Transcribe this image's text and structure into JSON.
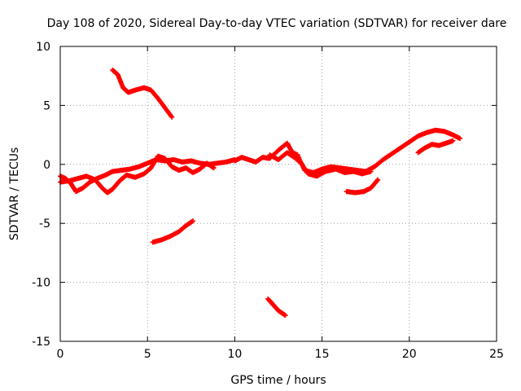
{
  "chart_data": {
    "type": "scatter",
    "title": "Day 108 of 2020, Sidereal Day-to-day VTEC variation (SDTVAR) for receiver dare",
    "xlabel": "GPS time / hours",
    "ylabel": "SDTVAR / TECUs",
    "xlim": [
      0,
      25
    ],
    "ylim": [
      -15,
      10
    ],
    "xticks": [
      0,
      5,
      10,
      15,
      20,
      25
    ],
    "yticks": [
      -15,
      -10,
      -5,
      0,
      5,
      10
    ],
    "grid": true,
    "marker": "+",
    "color": "#ff0000",
    "series": [
      {
        "name": "arc-upper-early",
        "points": [
          [
            3.0,
            8.0
          ],
          [
            3.3,
            7.6
          ],
          [
            3.6,
            6.5
          ],
          [
            3.9,
            6.1
          ],
          [
            4.3,
            6.3
          ],
          [
            4.8,
            6.5
          ],
          [
            5.2,
            6.3
          ],
          [
            5.6,
            5.6
          ],
          [
            6.0,
            4.8
          ],
          [
            6.4,
            4.0
          ]
        ]
      },
      {
        "name": "arc-lower-a",
        "points": [
          [
            5.3,
            -6.6
          ],
          [
            5.8,
            -6.4
          ],
          [
            6.3,
            -6.1
          ],
          [
            6.8,
            -5.7
          ],
          [
            7.2,
            -5.2
          ],
          [
            7.6,
            -4.8
          ]
        ]
      },
      {
        "name": "arc-lower-b",
        "points": [
          [
            11.9,
            -11.4
          ],
          [
            12.2,
            -11.9
          ],
          [
            12.5,
            -12.4
          ],
          [
            12.9,
            -12.8
          ]
        ]
      },
      {
        "name": "main-band-a",
        "points": [
          [
            0.0,
            -1.0
          ],
          [
            0.3,
            -1.2
          ],
          [
            0.6,
            -1.6
          ],
          [
            0.9,
            -2.3
          ],
          [
            1.3,
            -2.0
          ],
          [
            1.7,
            -1.5
          ],
          [
            2.1,
            -1.2
          ],
          [
            2.6,
            -0.9
          ],
          [
            3.0,
            -0.6
          ],
          [
            3.5,
            -0.5
          ],
          [
            4.0,
            -0.4
          ],
          [
            4.5,
            -0.2
          ],
          [
            5.0,
            0.1
          ],
          [
            5.5,
            0.4
          ],
          [
            6.0,
            0.3
          ],
          [
            6.5,
            0.4
          ],
          [
            7.0,
            0.2
          ],
          [
            7.5,
            0.3
          ],
          [
            8.0,
            0.1
          ],
          [
            8.5,
            0.0
          ],
          [
            9.0,
            0.1
          ],
          [
            9.5,
            0.2
          ],
          [
            10.0,
            0.4
          ]
        ]
      },
      {
        "name": "main-band-b",
        "points": [
          [
            0.0,
            -1.5
          ],
          [
            0.5,
            -1.4
          ],
          [
            1.0,
            -1.2
          ],
          [
            1.5,
            -1.0
          ],
          [
            2.0,
            -1.3
          ],
          [
            2.4,
            -2.0
          ],
          [
            2.7,
            -2.4
          ],
          [
            3.0,
            -2.1
          ],
          [
            3.4,
            -1.4
          ],
          [
            3.8,
            -0.9
          ],
          [
            4.3,
            -1.1
          ],
          [
            4.8,
            -0.8
          ],
          [
            5.2,
            -0.3
          ],
          [
            5.6,
            0.7
          ],
          [
            6.0,
            0.5
          ],
          [
            6.4,
            -0.2
          ],
          [
            6.8,
            -0.5
          ],
          [
            7.2,
            -0.3
          ],
          [
            7.6,
            -0.7
          ],
          [
            8.0,
            -0.4
          ],
          [
            8.4,
            0.1
          ],
          [
            8.8,
            -0.3
          ]
        ]
      },
      {
        "name": "main-band-c",
        "points": [
          [
            10.0,
            0.3
          ],
          [
            10.4,
            0.6
          ],
          [
            10.8,
            0.4
          ],
          [
            11.2,
            0.2
          ],
          [
            11.6,
            0.6
          ],
          [
            12.0,
            0.5
          ],
          [
            12.5,
            1.2
          ],
          [
            13.0,
            1.8
          ],
          [
            13.3,
            1.0
          ],
          [
            13.6,
            0.8
          ],
          [
            14.0,
            -0.5
          ],
          [
            14.5,
            -0.7
          ],
          [
            15.0,
            -0.4
          ],
          [
            15.5,
            -0.2
          ],
          [
            16.0,
            -0.3
          ],
          [
            16.5,
            -0.4
          ],
          [
            17.0,
            -0.5
          ],
          [
            17.5,
            -0.6
          ],
          [
            18.0,
            -0.2
          ],
          [
            18.5,
            0.4
          ],
          [
            19.0,
            0.9
          ],
          [
            19.5,
            1.4
          ],
          [
            20.0,
            1.9
          ],
          [
            20.5,
            2.4
          ],
          [
            21.0,
            2.7
          ],
          [
            21.5,
            2.9
          ],
          [
            22.0,
            2.8
          ],
          [
            22.5,
            2.5
          ],
          [
            22.9,
            2.2
          ]
        ]
      },
      {
        "name": "main-band-d",
        "points": [
          [
            12.0,
            0.8
          ],
          [
            12.5,
            0.4
          ],
          [
            13.0,
            1.0
          ],
          [
            13.5,
            0.5
          ],
          [
            13.8,
            0.1
          ],
          [
            14.2,
            -0.8
          ],
          [
            14.7,
            -1.0
          ],
          [
            15.2,
            -0.6
          ],
          [
            15.8,
            -0.4
          ],
          [
            16.3,
            -0.7
          ],
          [
            16.8,
            -0.6
          ],
          [
            17.3,
            -0.8
          ],
          [
            17.8,
            -0.6
          ]
        ]
      },
      {
        "name": "arc-mid-right",
        "points": [
          [
            16.4,
            -2.3
          ],
          [
            16.9,
            -2.4
          ],
          [
            17.4,
            -2.3
          ],
          [
            17.8,
            -2.0
          ],
          [
            18.2,
            -1.3
          ]
        ]
      },
      {
        "name": "arc-late",
        "points": [
          [
            20.5,
            1.0
          ],
          [
            20.9,
            1.4
          ],
          [
            21.3,
            1.7
          ],
          [
            21.7,
            1.6
          ],
          [
            22.1,
            1.8
          ],
          [
            22.5,
            2.0
          ]
        ]
      }
    ]
  }
}
